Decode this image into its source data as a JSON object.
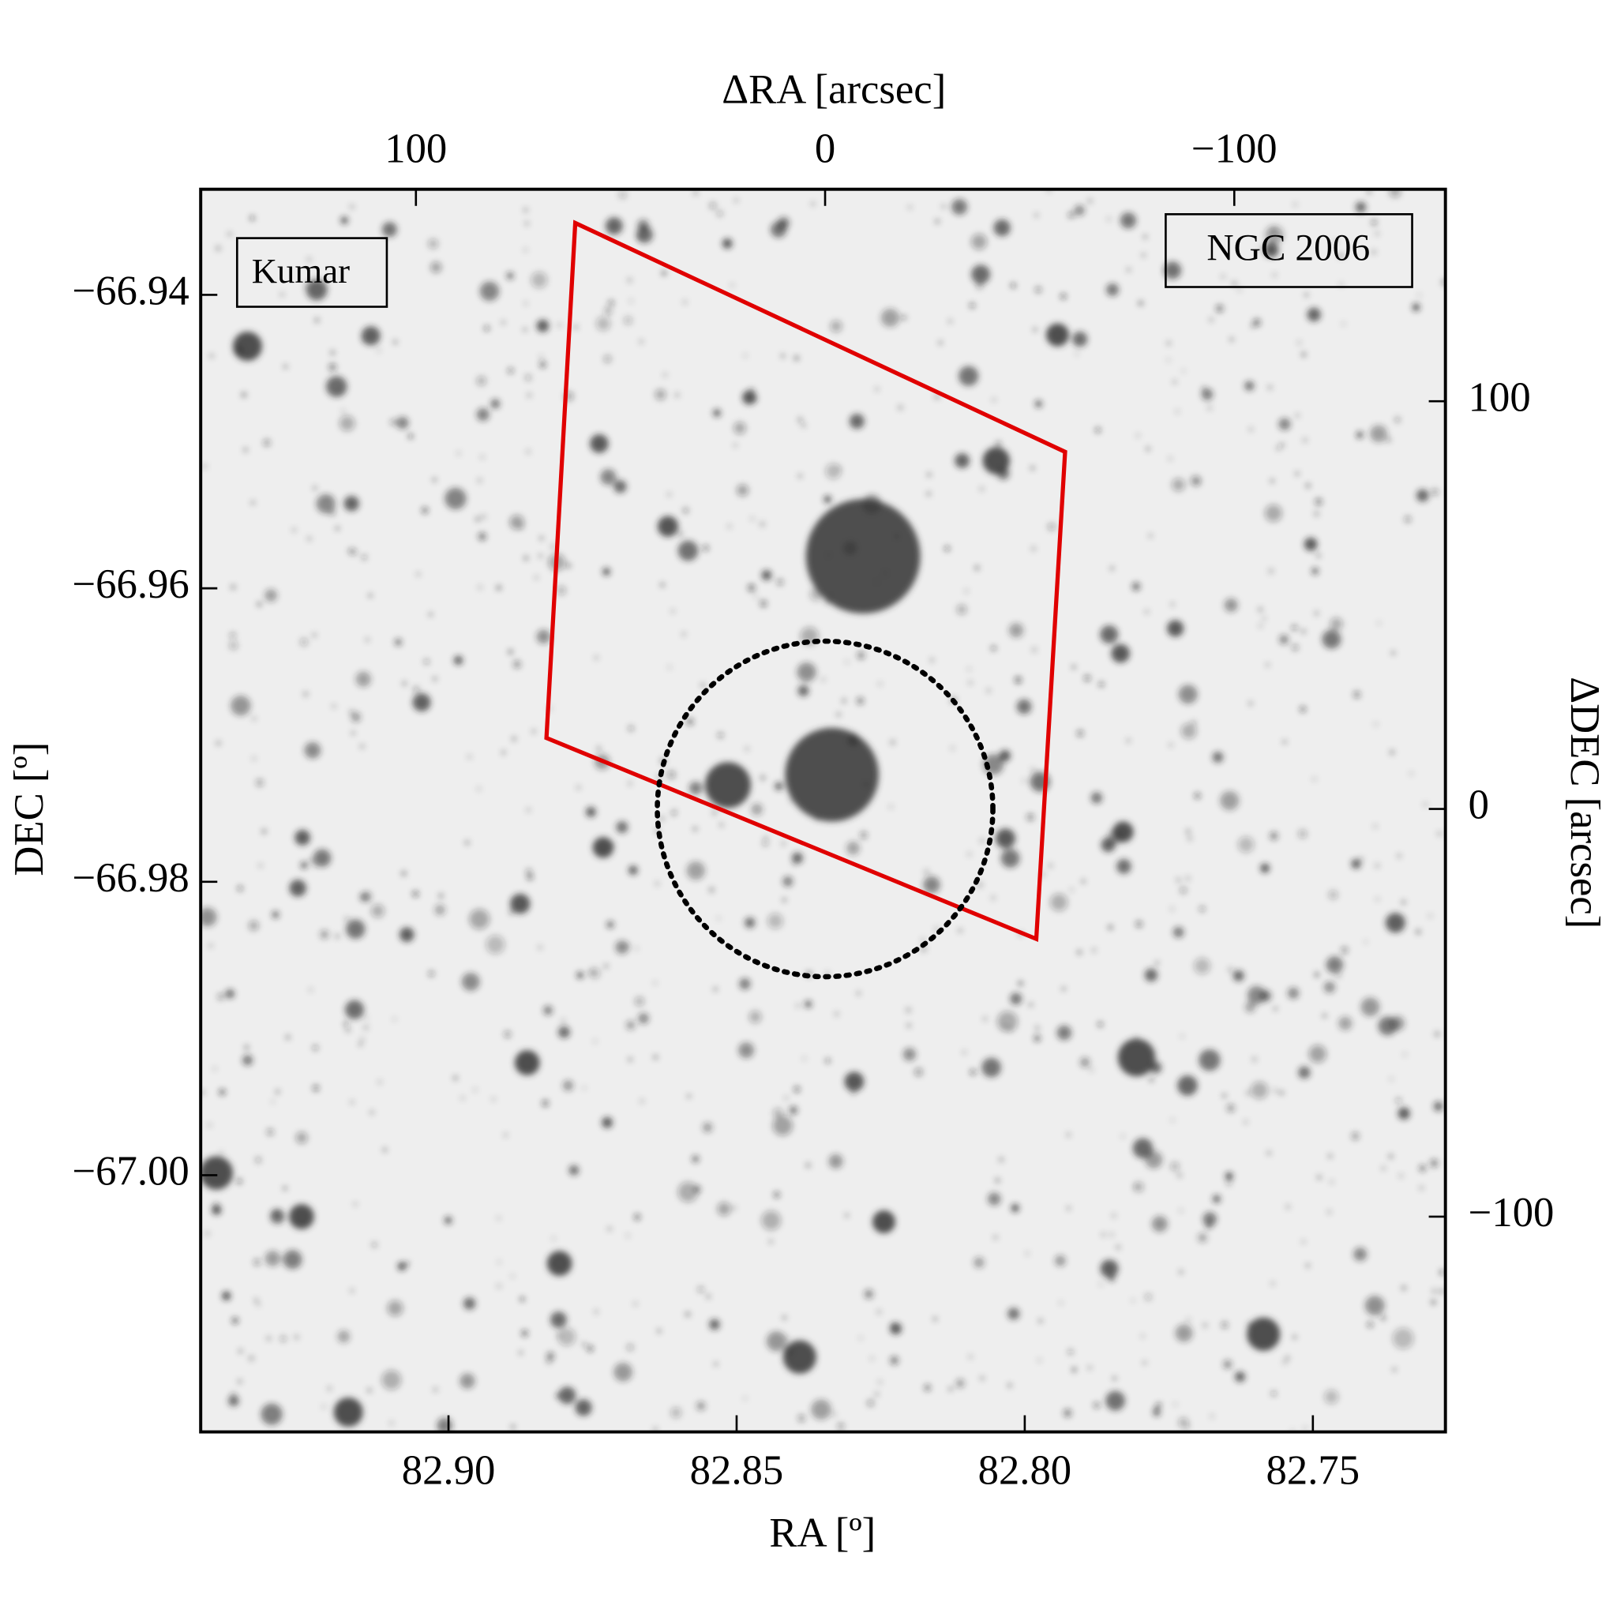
{
  "chart_data": {
    "type": "image",
    "xlabel": "RA [º]",
    "ylabel": "DEC [º]",
    "x2label": "ΔRA [arcsec]",
    "y2label": "ΔDEC [arcsec]",
    "xlim": [
      82.943,
      82.727
    ],
    "ylim": [
      -67.0175,
      -66.9328
    ],
    "x2lim": [
      152.6,
      -151.6
    ],
    "y2lim": [
      -152.8,
      152
    ],
    "xticks": [
      {
        "value": 82.9,
        "label": "82.90"
      },
      {
        "value": 82.85,
        "label": "82.85"
      },
      {
        "value": 82.8,
        "label": "82.80"
      },
      {
        "value": 82.75,
        "label": "82.75"
      }
    ],
    "yticks": [
      {
        "value": -66.94,
        "label": "−66.94"
      },
      {
        "value": -66.96,
        "label": "−66.96"
      },
      {
        "value": -66.98,
        "label": "−66.98"
      },
      {
        "value": -67.0,
        "label": "−67.00"
      }
    ],
    "x2ticks": [
      100,
      0,
      {
        "value": -100,
        "label": "−100"
      }
    ],
    "y2ticks": [
      100,
      0,
      {
        "value": -100,
        "label": "−100"
      }
    ],
    "series": [
      {
        "name": "Kumar",
        "color": "#e00000",
        "x": [
          82.878,
          82.793,
          82.798,
          82.883
        ],
        "y": [
          -66.9351,
          -66.9507,
          -66.9839,
          -66.9702
        ]
      }
    ],
    "circle": {
      "x": 0,
      "y": 0,
      "r": 41,
      "color": "#000000"
    },
    "annotations": [
      "NGC 2006"
    ]
  }
}
